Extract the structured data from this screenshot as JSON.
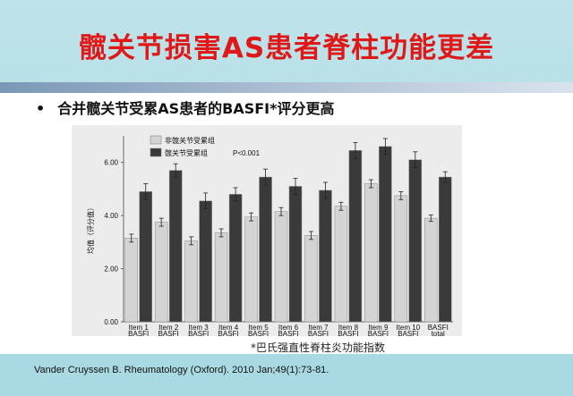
{
  "slide": {
    "title": "髋关节损害AS患者脊柱功能更差",
    "bullet": "合并髋关节受累AS患者的BASFI*评分更高",
    "caption": "*巴氏强直性脊柱炎功能指数",
    "citation": "Vander Cruyssen B. Rheumatology (Oxford). 2010 Jan;49(1):73-81."
  },
  "chart_data": {
    "type": "bar",
    "categories": [
      "Item 1\nBASFI",
      "Item 2\nBASFI",
      "Item 3\nBASFI",
      "Item 4\nBASFI",
      "Item 5\nBASFI",
      "Item 6\nBASFI",
      "Item 7\nBASFI",
      "Item 8\nBASFI",
      "Item 9\nBASFI",
      "Item 10\nBASFI",
      "BASFI\ntotal"
    ],
    "series": [
      {
        "name": "非髋关节受累组",
        "color": "#d4d4d4",
        "values": [
          3.15,
          3.75,
          3.05,
          3.35,
          3.95,
          4.15,
          3.25,
          4.35,
          5.2,
          4.75,
          3.9
        ],
        "errors": [
          0.15,
          0.15,
          0.15,
          0.15,
          0.15,
          0.15,
          0.15,
          0.15,
          0.15,
          0.15,
          0.12
        ]
      },
      {
        "name": "髋关节受累组",
        "color": "#3a3a3a",
        "values": [
          4.9,
          5.7,
          4.55,
          4.8,
          5.45,
          5.1,
          4.95,
          6.45,
          6.6,
          6.1,
          5.45
        ],
        "errors": [
          0.3,
          0.25,
          0.3,
          0.25,
          0.3,
          0.3,
          0.3,
          0.3,
          0.3,
          0.3,
          0.2
        ]
      }
    ],
    "ylabel": "均值（评分值）",
    "ylim": [
      0,
      7
    ],
    "yticks": [
      "0.00",
      "2.00",
      "4.00",
      "6.00"
    ],
    "annotation": "P<0.001",
    "legend_position": "top-left"
  }
}
